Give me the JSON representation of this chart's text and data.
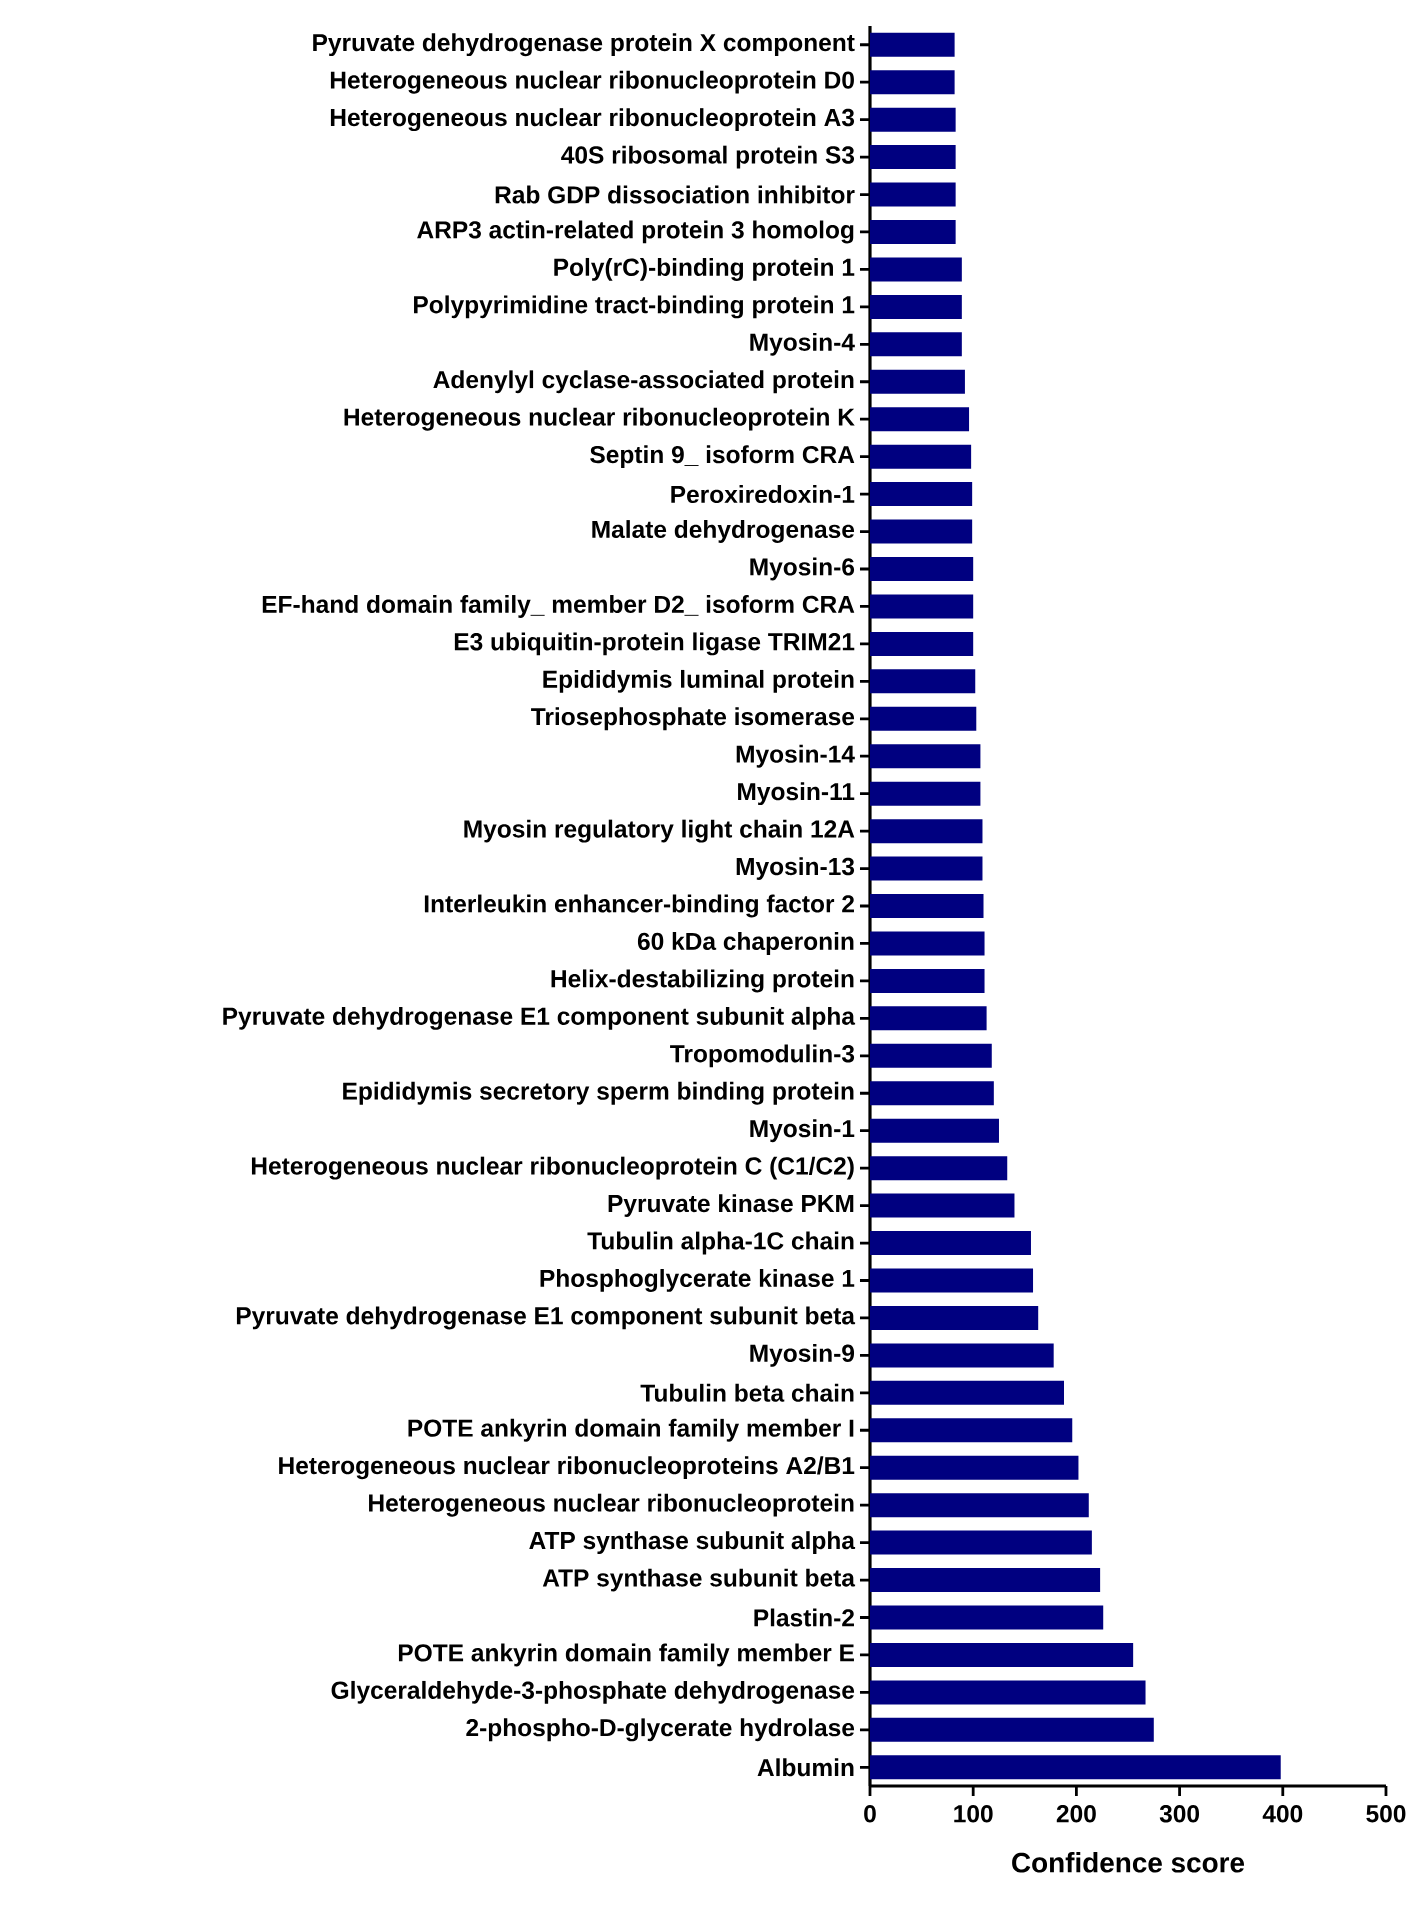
{
  "chart_data": {
    "type": "bar",
    "orientation": "horizontal",
    "xlabel": "Confidence score",
    "color": "#000080",
    "categories": [
      "Pyruvate dehydrogenase protein X component",
      "Heterogeneous nuclear ribonucleoprotein D0",
      "Heterogeneous nuclear ribonucleoprotein A3",
      "40S ribosomal protein S3",
      "Rab GDP dissociation inhibitor",
      "ARP3 actin-related protein 3 homolog",
      "Poly(rC)-binding protein 1",
      "Polypyrimidine tract-binding protein 1",
      "Myosin-4",
      "Adenylyl cyclase-associated protein",
      "Heterogeneous nuclear ribonucleoprotein K",
      "Septin 9_ isoform CRA",
      "Peroxiredoxin-1",
      "Malate dehydrogenase",
      "Myosin-6",
      "EF-hand domain family_ member D2_ isoform CRA",
      "E3 ubiquitin-protein ligase TRIM21",
      "Epididymis luminal protein",
      "Triosephosphate isomerase",
      "Myosin-14",
      "Myosin-11",
      "Myosin regulatory light chain 12A",
      "Myosin-13",
      "Interleukin enhancer-binding factor 2",
      "60 kDa chaperonin",
      "Helix-destabilizing protein",
      "Pyruvate dehydrogenase E1 component subunit alpha",
      "Tropomodulin-3",
      "Epididymis secretory sperm binding protein",
      "Myosin-1",
      "Heterogeneous nuclear ribonucleoprotein C (C1/C2)",
      "Pyruvate kinase PKM",
      "Tubulin alpha-1C chain",
      "Phosphoglycerate kinase 1",
      "Pyruvate dehydrogenase E1 component subunit beta",
      "Myosin-9",
      "Tubulin beta chain",
      "POTE ankyrin domain family member I",
      "Heterogeneous nuclear ribonucleoproteins A2/B1",
      "Heterogeneous nuclear ribonucleoprotein",
      "ATP synthase subunit alpha",
      "ATP synthase subunit beta",
      "Plastin-2",
      "POTE ankyrin domain family member E",
      "Glyceraldehyde-3-phosphate dehydrogenase",
      "2-phospho-D-glycerate hydrolase",
      "Albumin"
    ],
    "values": [
      82,
      82,
      83,
      83,
      83,
      83,
      89,
      89,
      89,
      92,
      96,
      98,
      99,
      99,
      100,
      100,
      100,
      102,
      103,
      107,
      107,
      109,
      109,
      110,
      111,
      111,
      113,
      118,
      120,
      125,
      133,
      140,
      156,
      158,
      163,
      178,
      188,
      196,
      202,
      212,
      215,
      223,
      226,
      255,
      267,
      275,
      398
    ],
    "xlim": [
      0,
      500
    ],
    "xticks": [
      0,
      100,
      200,
      300,
      400,
      500
    ]
  }
}
